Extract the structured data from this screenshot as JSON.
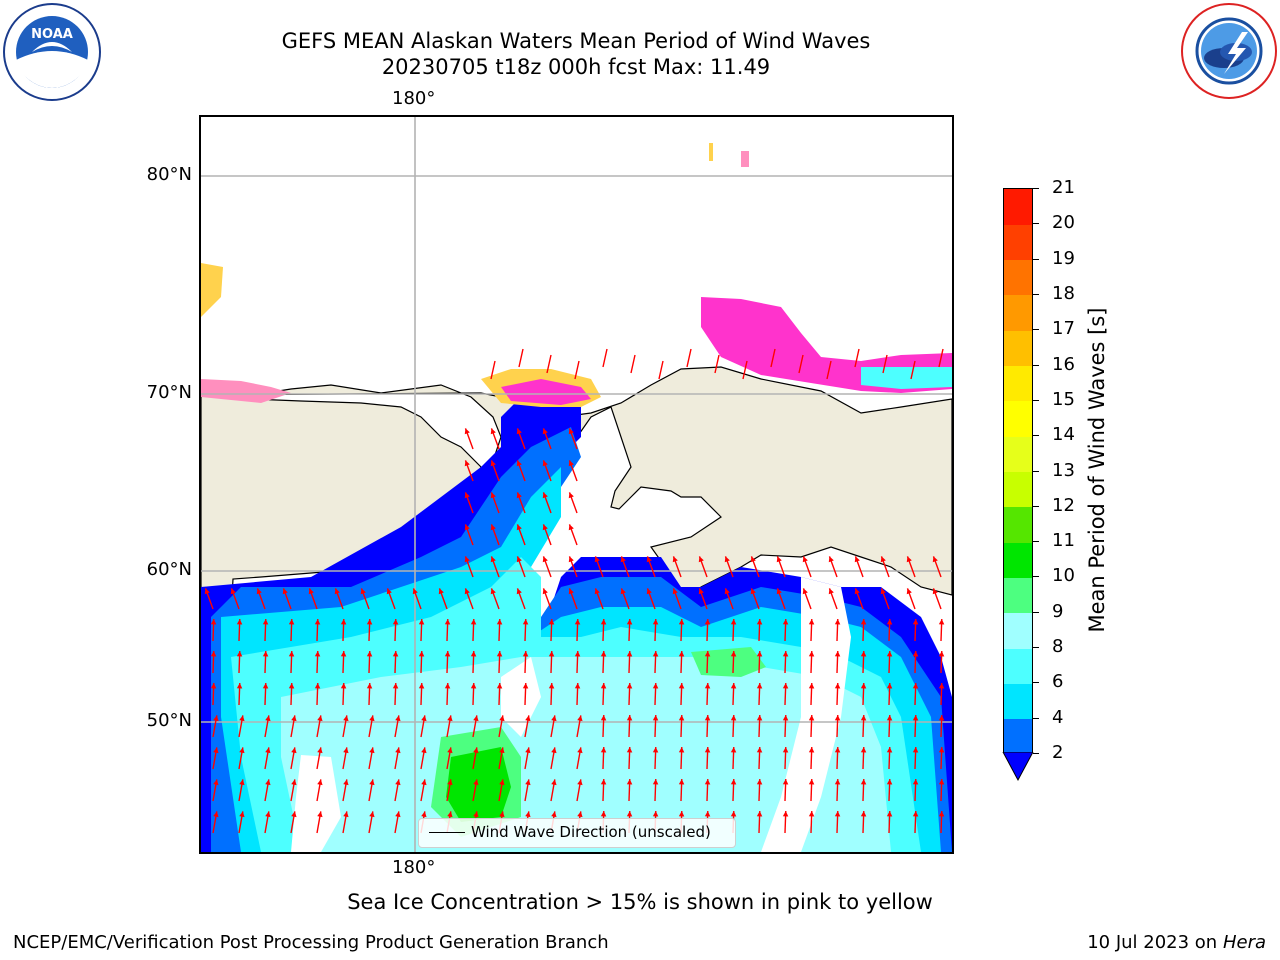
{
  "title": {
    "line1": "GEFS MEAN Alaskan Waters Mean Period of Wind Waves",
    "line2": "20230705 t18z 000h fcst   Max: 11.49"
  },
  "logos": {
    "left": {
      "icon": "noaa-logo",
      "text": "NOAA",
      "ring_text": "NATIONAL OCEANIC AND ATMOSPHERIC ADMINISTRATION · U.S. DEPARTMENT OF COMMERCE"
    },
    "right": {
      "icon": "nws-logo",
      "ring_text": "NATIONAL WEATHER SERVICE"
    }
  },
  "map": {
    "lat_labels": [
      "80°N",
      "70°N",
      "60°N",
      "50°N"
    ],
    "lon_label_top": "180°",
    "lon_label_bottom": "180°",
    "legend": {
      "text": "Wind Wave Direction (unscaled)",
      "line_color": "#000000"
    },
    "arrow_color": "#ff0000",
    "land_color": "#efecdc",
    "sea_ice_colors": [
      "#ff33cc",
      "#ff8fbe",
      "#ffd24d",
      "#ffff66"
    ]
  },
  "colorbar": {
    "label": "Mean Period of Wind Waves [s]",
    "ticks": [
      "2",
      "4",
      "6",
      "8",
      "9",
      "10",
      "11",
      "12",
      "13",
      "14",
      "15",
      "16",
      "17",
      "18",
      "19",
      "20",
      "21"
    ],
    "colors": [
      "#0070ff",
      "#00e5ff",
      "#4dffff",
      "#a0ffff",
      "#4dff80",
      "#00e600",
      "#55e600",
      "#c8ff00",
      "#e6ff1a",
      "#ffff00",
      "#ffea00",
      "#ffbf00",
      "#ff9900",
      "#ff7300",
      "#ff4000",
      "#ff1a00"
    ],
    "extend_color": "#0000ff"
  },
  "chart_data": {
    "type": "heatmap",
    "variable": "Mean Period of Wind Waves",
    "units": "s",
    "max": 11.49,
    "color_levels": [
      2,
      4,
      6,
      8,
      9,
      10,
      11,
      12,
      13,
      14,
      15,
      16,
      17,
      18,
      19,
      20,
      21
    ]
  },
  "footer": {
    "ice_note": "Sea Ice Concentration > 15% is shown in pink to yellow",
    "credit_left": "NCEP/EMC/Verification Post Processing Product Generation Branch",
    "credit_right_date": "10 Jul 2023 on",
    "credit_right_host": "Hera"
  }
}
